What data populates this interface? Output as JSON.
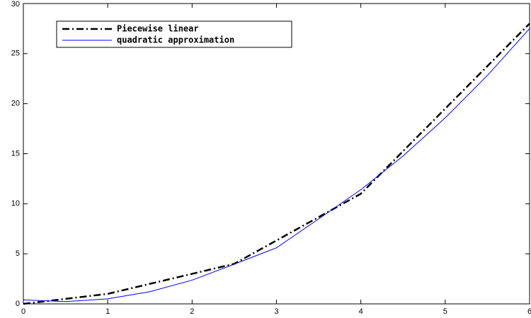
{
  "chart_data": {
    "type": "line",
    "xlim": [
      0,
      6
    ],
    "ylim": [
      0,
      30
    ],
    "xticks": [
      0,
      1,
      2,
      3,
      4,
      5,
      6
    ],
    "yticks": [
      0,
      5,
      10,
      15,
      20,
      25,
      30
    ],
    "grid": false,
    "legend": "upper left",
    "series": [
      {
        "name": "Piecewise linear",
        "color": "#000000",
        "dash": "dashdot",
        "width": 2.5,
        "x": [
          0,
          1,
          2.5,
          4,
          6
        ],
        "values": [
          0,
          1,
          4,
          11,
          28
        ]
      },
      {
        "name": "quadratic approximation",
        "color": "#0000ff",
        "dash": "solid",
        "width": 1,
        "x": [
          0,
          0.5,
          1,
          1.5,
          2,
          2.5,
          3,
          3.5,
          4,
          4.5,
          5,
          5.5,
          6
        ],
        "values": [
          0.4,
          0.23,
          0.5,
          1.22,
          2.37,
          3.97,
          5.6,
          8.49,
          11.41,
          14.77,
          18.58,
          22.82,
          27.5
        ]
      }
    ]
  }
}
